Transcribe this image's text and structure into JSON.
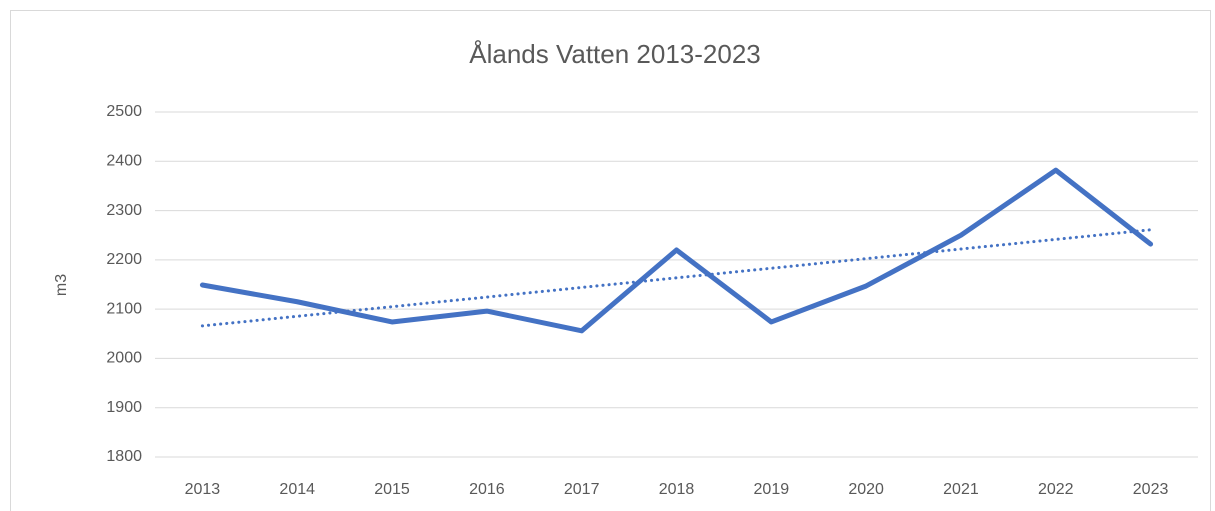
{
  "chart_data": {
    "type": "line",
    "title": "Ålands Vatten 2013-2023",
    "y_label": "m3",
    "categories": [
      "2013",
      "2014",
      "2015",
      "2016",
      "2017",
      "2018",
      "2019",
      "2020",
      "2021",
      "2022",
      "2023"
    ],
    "series": [
      {
        "name": "Ålands Vatten",
        "color": "#4472c4",
        "values": [
          2149,
          2115,
          2074,
          2096,
          2056,
          2220,
          2074,
          2147,
          2250,
          2382,
          2232
        ]
      }
    ],
    "trendline": {
      "color": "#4472c4",
      "style": "dotted",
      "values": [
        2066,
        2261
      ]
    },
    "ylim": [
      1800,
      2500
    ],
    "yticks": [
      1800,
      1900,
      2000,
      2100,
      2200,
      2300,
      2400,
      2500
    ],
    "grid": true,
    "legend": false
  }
}
